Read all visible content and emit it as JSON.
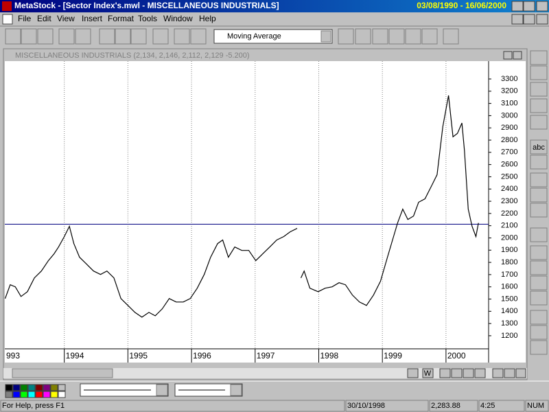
{
  "window": {
    "title": "MetaStock - [Sector Index's.mwl - MISCELLANEOUS INDUSTRIALS]",
    "date_range": "03/08/1990 - 16/06/2000",
    "menu": [
      "File",
      "Edit",
      "View",
      "Insert",
      "Format",
      "Tools",
      "Window",
      "Help"
    ],
    "indicator": "Moving Average",
    "palette_text": "abc",
    "scroll_button": "W",
    "status": [
      "For Help, press F1",
      "30/10/1998",
      "2,283.88",
      "4:25",
      "NUM"
    ]
  },
  "chart_data": {
    "type": "line",
    "title": "MISCELLANEOUS INDUSTRIALS (2,134, 2,146, 2,112, 2,129 -5.200)",
    "x": [
      1993.07,
      1993.15,
      1993.23,
      1993.32,
      1993.42,
      1993.53,
      1993.64,
      1993.75,
      1993.84,
      1993.91,
      1994.0,
      1994.08,
      1994.15,
      1994.24,
      1994.35,
      1994.46,
      1994.57,
      1994.67,
      1994.78,
      1994.89,
      1995.0,
      1995.11,
      1995.22,
      1995.33,
      1995.43,
      1995.54,
      1995.65,
      1995.76,
      1995.87,
      1995.98,
      1996.09,
      1996.2,
      1996.3,
      1996.41,
      1996.49,
      1996.58,
      1996.68,
      1996.79,
      1996.9,
      1997.01,
      1997.12,
      1997.23,
      1997.34,
      1997.45,
      1997.55,
      1997.66,
      1997.69,
      1997.72,
      1997.77,
      1997.86,
      1997.99,
      1998.1,
      1998.21,
      1998.32,
      1998.42,
      1998.53,
      1998.64,
      1998.75,
      1998.86,
      1998.97,
      1999.08,
      1999.16,
      1999.24,
      1999.32,
      1999.4,
      1999.49,
      1999.57,
      1999.67,
      1999.78,
      1999.86,
      1999.95,
      2000.04,
      2000.11,
      2000.18,
      2000.25,
      2000.29,
      2000.35,
      2000.41,
      2000.47,
      2000.51
    ],
    "series": [
      {
        "color": "#000000",
        "values": [
          1504,
          1617,
          1600,
          1521,
          1560,
          1673,
          1729,
          1814,
          1870,
          1926,
          2011,
          2095,
          1954,
          1842,
          1786,
          1729,
          1701,
          1729,
          1673,
          1504,
          1448,
          1391,
          1352,
          1391,
          1363,
          1420,
          1504,
          1476,
          1476,
          1504,
          1589,
          1701,
          1842,
          1954,
          1983,
          1842,
          1926,
          1898,
          1898,
          1814,
          1870,
          1926,
          1983,
          2011,
          2050,
          2078,
          null,
          1673,
          1729,
          1589,
          1560,
          1589,
          1600,
          1634,
          1617,
          1532,
          1476,
          1448,
          1532,
          1645,
          1842,
          1983,
          2123,
          2236,
          2151,
          2179,
          2292,
          2320,
          2433,
          2517,
          2912,
          3165,
          2827,
          2855,
          2940,
          2714,
          2236,
          2095,
          2011,
          2123
        ]
      }
    ],
    "hline": 2112,
    "hline_color": "#000080",
    "xlim": [
      1993.065,
      2000.67
    ],
    "xticks": [
      {
        "value": 1993,
        "label": "993"
      },
      1994,
      1995,
      1996,
      1997,
      1998,
      1999,
      2000
    ],
    "ylim": [
      1093,
      3446
    ],
    "yticks": [
      1200,
      1300,
      1400,
      1500,
      1600,
      1700,
      1800,
      1900,
      2000,
      2100,
      2200,
      2300,
      2400,
      2500,
      2600,
      2700,
      2800,
      2900,
      3000,
      3100,
      3200,
      3300
    ],
    "grid": "x"
  }
}
